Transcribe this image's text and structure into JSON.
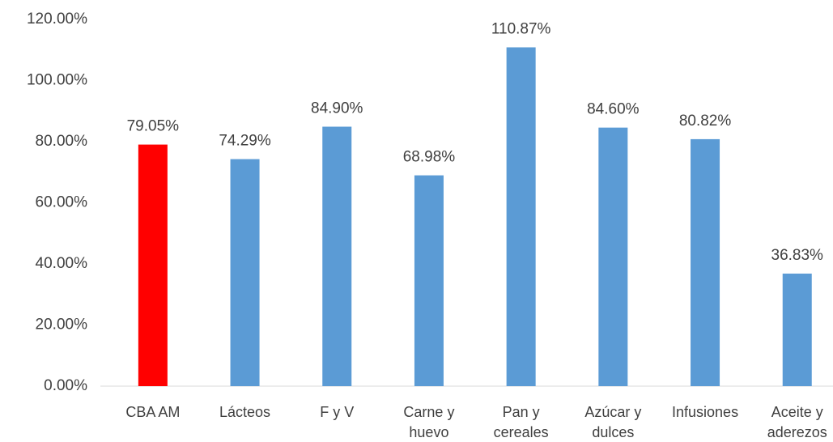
{
  "chart_data": {
    "type": "bar",
    "categories": [
      "CBA AM",
      "Lácteos",
      "F y V",
      "Carne y huevo",
      "Pan y cereales",
      "Azúcar y dulces",
      "Infusiones",
      "Aceite y aderezos"
    ],
    "values": [
      79.05,
      74.29,
      84.9,
      68.98,
      110.87,
      84.6,
      80.82,
      36.83
    ],
    "value_labels": [
      "79.05%",
      "74.29%",
      "84.90%",
      "68.98%",
      "110.87%",
      "84.60%",
      "80.82%",
      "36.83%"
    ],
    "colors": [
      "#ff0000",
      "#5b9bd5",
      "#5b9bd5",
      "#5b9bd5",
      "#5b9bd5",
      "#5b9bd5",
      "#5b9bd5",
      "#5b9bd5"
    ],
    "ylim": [
      0,
      120
    ],
    "yticks": [
      {
        "value": 0,
        "label": "0.00%"
      },
      {
        "value": 20,
        "label": "20.00%"
      },
      {
        "value": 40,
        "label": "40.00%"
      },
      {
        "value": 60,
        "label": "60.00%"
      },
      {
        "value": 80,
        "label": "80.00%"
      },
      {
        "value": 100,
        "label": "100.00%"
      },
      {
        "value": 120,
        "label": "120.00%"
      }
    ],
    "grid": false
  }
}
